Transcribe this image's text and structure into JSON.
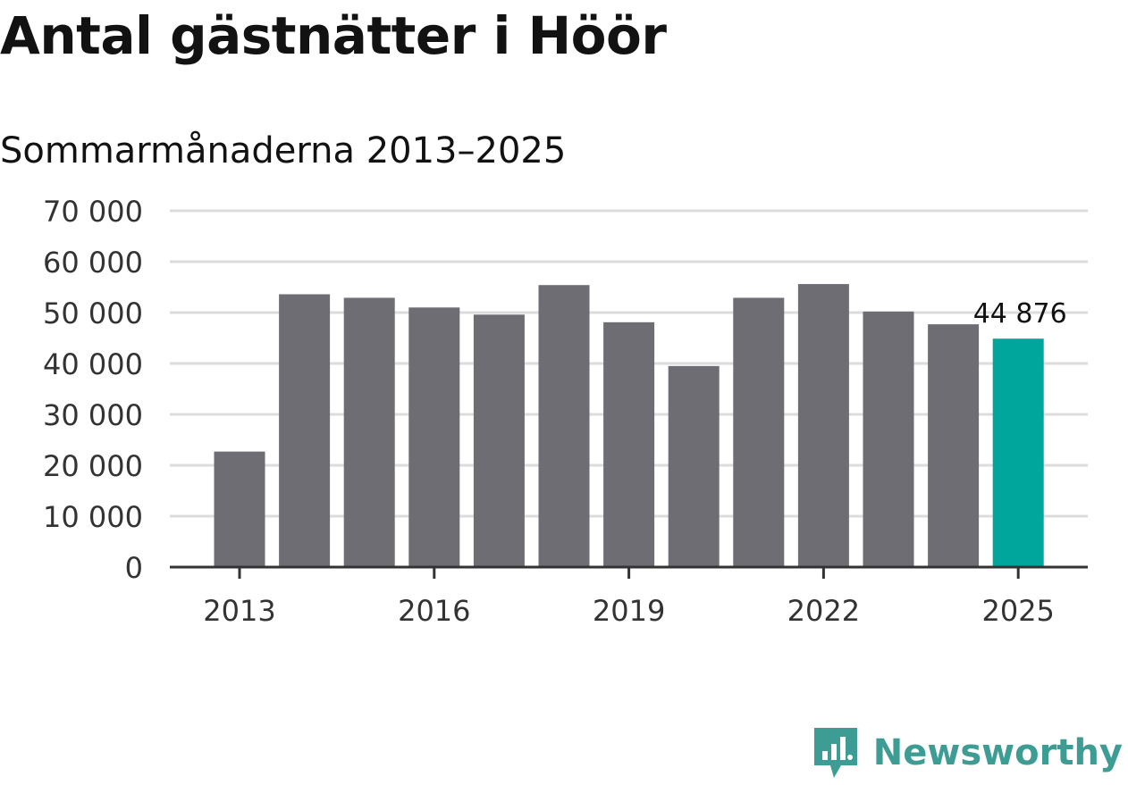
{
  "title": "Antal gästnätter i Höör",
  "subtitle": "Sommarmånaderna 2013–2025",
  "brand": {
    "name": "Newsworthy",
    "icon": "newsworthy-logo-icon",
    "color": "#3d9c94"
  },
  "chart_data": {
    "type": "bar",
    "title": "Antal gästnätter i Höör",
    "subtitle": "Sommarmånaderna 2013–2025",
    "xlabel": "",
    "ylabel": "",
    "categories": [
      "2013",
      "2014",
      "2015",
      "2016",
      "2017",
      "2018",
      "2019",
      "2020",
      "2021",
      "2022",
      "2023",
      "2024",
      "2025"
    ],
    "series": [
      {
        "values": [
          22700,
          53600,
          52900,
          51000,
          49600,
          55400,
          48100,
          39500,
          52900,
          55600,
          50200,
          47700,
          44876
        ]
      }
    ],
    "ylim": [
      0,
      70000
    ],
    "yticks": [
      0,
      10000,
      20000,
      30000,
      40000,
      50000,
      60000,
      70000
    ],
    "ytick_labels": [
      "0",
      "10 000",
      "20 000",
      "30 000",
      "40 000",
      "50 000",
      "60 000",
      "70 000"
    ],
    "xtick_labels": [
      "2013",
      "2016",
      "2019",
      "2022",
      "2025"
    ],
    "highlight": {
      "category": "2025",
      "label": "44 876"
    },
    "colors": {
      "bar": "#6e6d73",
      "highlight": "#00a59b",
      "grid": "#dcdcdc",
      "axis": "#333333"
    },
    "grid": true,
    "legend": "none"
  }
}
